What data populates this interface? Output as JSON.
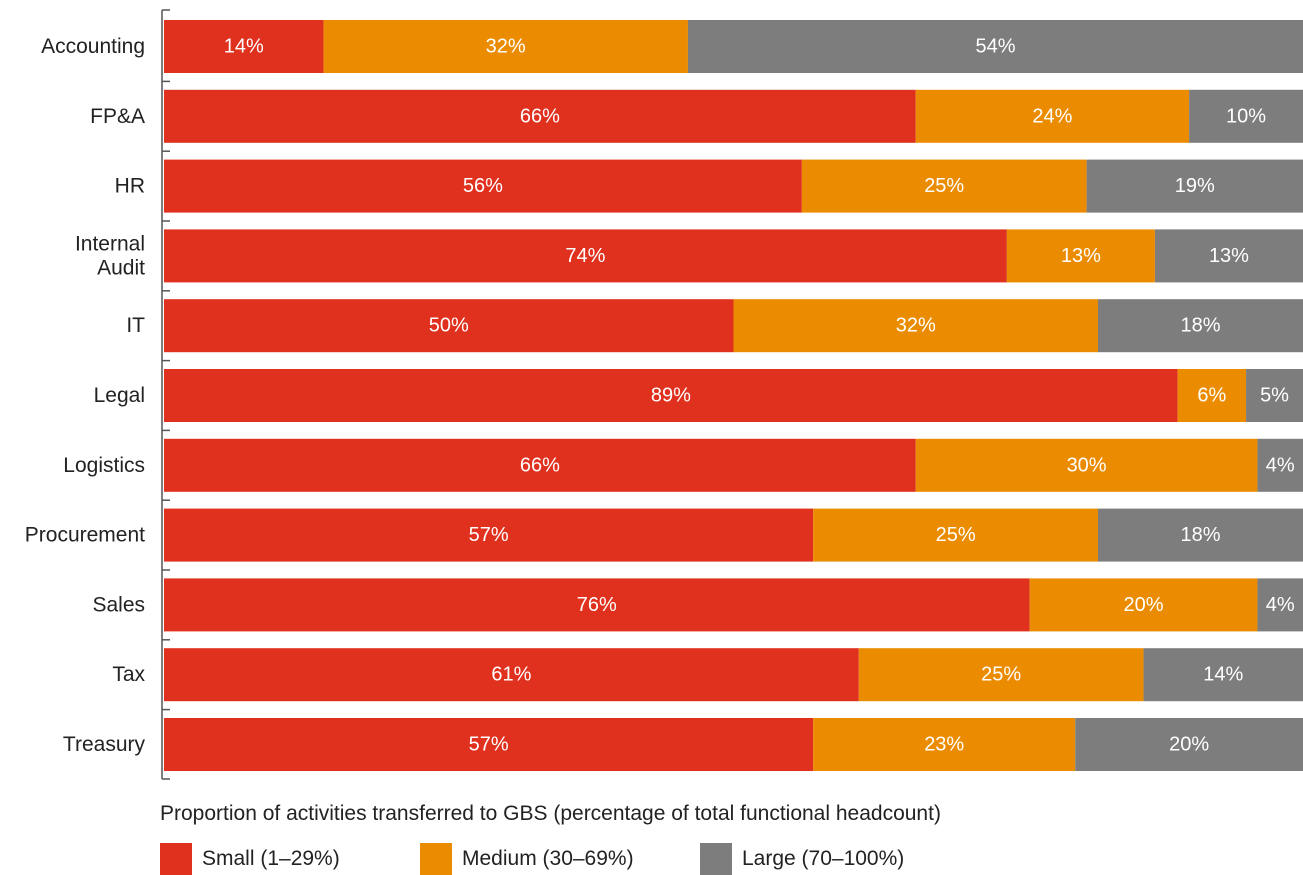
{
  "chart_data": {
    "type": "bar",
    "orientation": "horizontal",
    "stacked": true,
    "categories": [
      "Accounting",
      "FP&A",
      "HR",
      "Internal Audit",
      "IT",
      "Legal",
      "Logistics",
      "Procurement",
      "Sales",
      "Tax",
      "Treasury"
    ],
    "category_display": [
      [
        "Accounting"
      ],
      [
        "FP&A"
      ],
      [
        "HR"
      ],
      [
        "Internal",
        "Audit"
      ],
      [
        "IT"
      ],
      [
        "Legal"
      ],
      [
        "Logistics"
      ],
      [
        "Procurement"
      ],
      [
        "Sales"
      ],
      [
        "Tax"
      ],
      [
        "Treasury"
      ]
    ],
    "series": [
      {
        "name": "Small (1–29%)",
        "color": "#e0301e",
        "values": [
          14,
          66,
          56,
          74,
          50,
          89,
          66,
          57,
          76,
          61,
          57
        ]
      },
      {
        "name": "Medium (30–69%)",
        "color": "#eb8c00",
        "values": [
          32,
          24,
          25,
          13,
          32,
          6,
          30,
          25,
          20,
          25,
          23
        ]
      },
      {
        "name": "Large (70–100%)",
        "color": "#7d7d7d",
        "values": [
          54,
          10,
          19,
          13,
          18,
          5,
          4,
          18,
          4,
          14,
          20
        ]
      }
    ],
    "value_labels": [
      [
        "14%",
        "66%",
        "56%",
        "74%",
        "50%",
        "89%",
        "66%",
        "57%",
        "76%",
        "61%",
        "57%"
      ],
      [
        "32%",
        "24%",
        "25%",
        "13%",
        "32%",
        "6%",
        "30%",
        "25%",
        "20%",
        "25%",
        "23%"
      ],
      [
        "54%",
        "10%",
        "19%",
        "13%",
        "18%",
        "5%",
        "4%",
        "18%",
        "4%",
        "14%",
        "20%"
      ]
    ],
    "xlabel": "Proportion of activities transferred to GBS (percentage of total functional headcount)",
    "xlim": [
      0,
      100
    ],
    "grid": false,
    "legend_position": "bottom"
  }
}
